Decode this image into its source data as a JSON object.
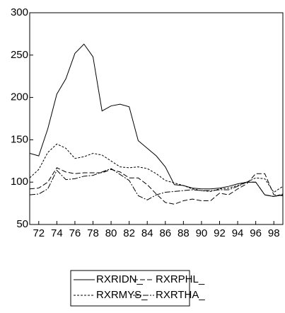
{
  "chart_data": {
    "type": "line",
    "x": [
      71,
      72,
      73,
      74,
      75,
      76,
      77,
      78,
      79,
      80,
      81,
      82,
      83,
      84,
      85,
      86,
      87,
      88,
      89,
      90,
      91,
      92,
      93,
      94,
      95,
      96,
      97,
      98,
      99
    ],
    "xlim": [
      71,
      99
    ],
    "xticks": [
      72,
      74,
      76,
      78,
      80,
      82,
      84,
      86,
      88,
      90,
      92,
      94,
      96,
      98
    ],
    "ylim": [
      50,
      300
    ],
    "yticks": [
      50,
      100,
      150,
      200,
      250,
      300
    ],
    "series": [
      {
        "name": "RXRIDN_",
        "color": "#000000",
        "dash": "none",
        "values": [
          134,
          131,
          163,
          204,
          222,
          252,
          263,
          248,
          184,
          190,
          192,
          189,
          149,
          140,
          131,
          118,
          97,
          96,
          93,
          92,
          92,
          93,
          95,
          98,
          100,
          100,
          85,
          83,
          85
        ]
      },
      {
        "name": "RXRPHL_",
        "color": "#000000",
        "dash": "7,3",
        "values": [
          92,
          93,
          100,
          117,
          112,
          110,
          111,
          111,
          111,
          115,
          112,
          105,
          105,
          97,
          86,
          76,
          74,
          78,
          80,
          78,
          78,
          87,
          85,
          92,
          98,
          110,
          110,
          85,
          84
        ]
      },
      {
        "name": "RXRMYS_",
        "color": "#000000",
        "dash": "3,2",
        "values": [
          105,
          115,
          135,
          145,
          140,
          128,
          130,
          134,
          132,
          125,
          118,
          117,
          118,
          116,
          110,
          102,
          99,
          96,
          92,
          90,
          89,
          92,
          93,
          96,
          100,
          105,
          104,
          88,
          95
        ]
      },
      {
        "name": "RXRTHA_",
        "color": "#000000",
        "dash": "8,2,2,2",
        "values": [
          85,
          86,
          92,
          114,
          103,
          104,
          107,
          108,
          112,
          116,
          109,
          102,
          84,
          79,
          85,
          88,
          89,
          90,
          91,
          90,
          90,
          91,
          91,
          95,
          100,
          100,
          85,
          83,
          86
        ]
      }
    ]
  }
}
